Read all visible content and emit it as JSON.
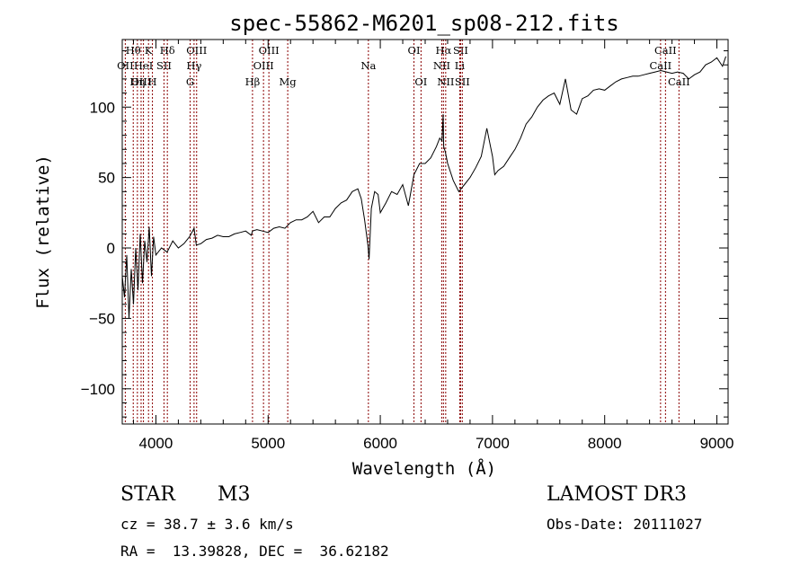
{
  "chart_data": {
    "type": "line",
    "title": "spec-55862-M6201_sp08-212.fits",
    "xlabel": "Wavelength (Å)",
    "ylabel": "Flux (relative)",
    "xlim": [
      3700,
      9100
    ],
    "ylim": [
      -125,
      148
    ],
    "x_ticks": [
      4000,
      5000,
      6000,
      7000,
      8000,
      9000
    ],
    "y_ticks": [
      -100,
      -50,
      0,
      50,
      100
    ],
    "x_tick_labels": [
      "4000",
      "5000",
      "6000",
      "7000",
      "8000",
      "9000"
    ],
    "y_tick_labels": [
      "−100",
      "−50",
      "0",
      "50",
      "100"
    ],
    "series": [
      {
        "name": "flux",
        "x": [
          3700,
          3720,
          3740,
          3760,
          3780,
          3800,
          3820,
          3840,
          3860,
          3880,
          3900,
          3920,
          3940,
          3960,
          3980,
          4000,
          4050,
          4100,
          4150,
          4200,
          4250,
          4300,
          4340,
          4360,
          4400,
          4450,
          4500,
          4550,
          4600,
          4650,
          4700,
          4750,
          4800,
          4850,
          4861,
          4900,
          4950,
          5000,
          5050,
          5100,
          5150,
          5200,
          5250,
          5300,
          5350,
          5400,
          5450,
          5500,
          5550,
          5600,
          5650,
          5700,
          5750,
          5800,
          5830,
          5860,
          5890,
          5900,
          5920,
          5950,
          5980,
          6000,
          6050,
          6100,
          6150,
          6200,
          6250,
          6300,
          6350,
          6400,
          6450,
          6500,
          6530,
          6550,
          6560,
          6565,
          6580,
          6600,
          6650,
          6700,
          6750,
          6800,
          6850,
          6900,
          6950,
          7000,
          7020,
          7050,
          7100,
          7150,
          7200,
          7250,
          7300,
          7350,
          7400,
          7450,
          7500,
          7550,
          7600,
          7650,
          7700,
          7750,
          7800,
          7850,
          7900,
          7950,
          8000,
          8050,
          8100,
          8150,
          8200,
          8250,
          8300,
          8350,
          8400,
          8450,
          8500,
          8550,
          8600,
          8650,
          8700,
          8750,
          8800,
          8850,
          8900,
          8950,
          9000,
          9050,
          9080
        ],
        "y": [
          -20,
          -35,
          -5,
          -50,
          -15,
          -40,
          0,
          -30,
          10,
          -25,
          5,
          -10,
          15,
          -20,
          8,
          -5,
          0,
          -3,
          5,
          0,
          3,
          8,
          14,
          2,
          3,
          6,
          7,
          9,
          8,
          8,
          10,
          11,
          12,
          9,
          12,
          13,
          12,
          11,
          14,
          15,
          14,
          18,
          20,
          20,
          22,
          26,
          18,
          22,
          22,
          28,
          32,
          34,
          40,
          42,
          35,
          20,
          2,
          -8,
          28,
          40,
          38,
          25,
          32,
          40,
          38,
          45,
          30,
          52,
          60,
          60,
          64,
          72,
          78,
          76,
          95,
          72,
          68,
          60,
          48,
          40,
          45,
          50,
          57,
          65,
          85,
          65,
          52,
          55,
          58,
          64,
          70,
          78,
          88,
          93,
          100,
          105,
          108,
          110,
          102,
          120,
          98,
          95,
          106,
          108,
          112,
          113,
          112,
          115,
          118,
          120,
          121,
          122,
          122,
          123,
          124,
          125,
          126,
          125,
          124,
          125,
          124,
          120,
          123,
          125,
          130,
          132,
          135,
          129,
          136
        ]
      }
    ],
    "line_markers": [
      {
        "label": "Hθ",
        "wavelength": 3798,
        "row": 0,
        "color": "#8b0000"
      },
      {
        "label": "OII",
        "wavelength": 3727,
        "row": 1,
        "color": "#8b0000"
      },
      {
        "label": "OIII",
        "wavelength": 3868,
        "row": 2,
        "color": "#8b0000"
      },
      {
        "label": "K",
        "wavelength": 3934,
        "row": 0,
        "color": "#8b0000"
      },
      {
        "label": "HeI",
        "wavelength": 3889,
        "row": 1,
        "color": "#8b0000"
      },
      {
        "label": "Hη",
        "wavelength": 3835,
        "row": 2,
        "color": "#8b0000"
      },
      {
        "label": "SII",
        "wavelength": 4072,
        "row": 1,
        "color": "#8b0000"
      },
      {
        "label": "H",
        "wavelength": 3969,
        "row": 2,
        "color": "#8b0000"
      },
      {
        "label": "Hδ",
        "wavelength": 4102,
        "row": 0,
        "color": "#8b0000"
      },
      {
        "label": "OIII",
        "wavelength": 4363,
        "row": 0,
        "color": "#8b0000"
      },
      {
        "label": "Hγ",
        "wavelength": 4340,
        "row": 1,
        "color": "#8b0000"
      },
      {
        "label": "G",
        "wavelength": 4305,
        "row": 2,
        "color": "#8b0000"
      },
      {
        "label": "OIII",
        "wavelength": 5007,
        "row": 0,
        "color": "#8b0000"
      },
      {
        "label": "OIII",
        "wavelength": 4959,
        "row": 1,
        "color": "#8b0000"
      },
      {
        "label": "Hβ",
        "wavelength": 4861,
        "row": 2,
        "color": "#8b0000"
      },
      {
        "label": "Mg",
        "wavelength": 5175,
        "row": 2,
        "color": "#8b0000"
      },
      {
        "label": "Na",
        "wavelength": 5894,
        "row": 1,
        "color": "#8b0000"
      },
      {
        "label": "OI",
        "wavelength": 6300,
        "row": 0,
        "color": "#8b0000"
      },
      {
        "label": "OI",
        "wavelength": 6363,
        "row": 2,
        "color": "#8b0000"
      },
      {
        "label": "Hα",
        "wavelength": 6563,
        "row": 0,
        "color": "#8b0000"
      },
      {
        "label": "NII",
        "wavelength": 6548,
        "row": 1,
        "color": "#8b0000"
      },
      {
        "label": "NII",
        "wavelength": 6583,
        "row": 2,
        "color": "#8b0000"
      },
      {
        "label": "SII",
        "wavelength": 6716,
        "row": 0,
        "color": "#8b0000"
      },
      {
        "label": "Li",
        "wavelength": 6708,
        "row": 1,
        "color": "#8b0000"
      },
      {
        "label": "SII",
        "wavelength": 6731,
        "row": 2,
        "color": "#8b0000"
      },
      {
        "label": "CaII",
        "wavelength": 8542,
        "row": 0,
        "color": "#8b0000"
      },
      {
        "label": "CaII",
        "wavelength": 8498,
        "row": 1,
        "color": "#8b0000"
      },
      {
        "label": "CaII",
        "wavelength": 8662,
        "row": 2,
        "color": "#8b0000"
      }
    ]
  },
  "info": {
    "class": "STAR",
    "subclass": "M3",
    "survey": "LAMOST DR3",
    "cz": "cz = 38.7 ± 3.6 km/s",
    "obs_date": "Obs-Date: 20111027",
    "radec": "RA =  13.39828, DEC =  36.62182"
  }
}
